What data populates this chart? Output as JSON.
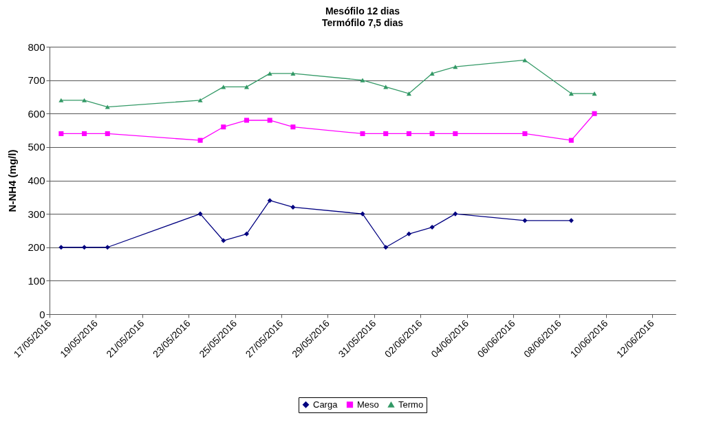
{
  "chart_data": {
    "type": "line",
    "title": "Mesófilo 12 dias",
    "subtitle": "Termófilo 7,5 dias",
    "ylabel": "N-NH4 (mg/l)",
    "x": [
      "2016-05-17T12:00",
      "2016-05-18T12:00",
      "2016-05-19T12:00",
      "2016-05-23T12:00",
      "2016-05-24T12:00",
      "2016-05-25T12:00",
      "2016-05-26T12:00",
      "2016-05-27T12:00",
      "2016-05-30T12:00",
      "2016-05-31T12:00",
      "2016-06-01T12:00",
      "2016-06-02T12:00",
      "2016-06-03T12:00",
      "2016-06-06T12:00",
      "2016-06-08T12:00",
      "2016-06-09T12:00"
    ],
    "series": [
      {
        "name": "Carga",
        "color": "#000080",
        "marker": "diamond",
        "values": [
          200,
          200,
          200,
          300,
          220,
          240,
          340,
          320,
          300,
          200,
          240,
          260,
          300,
          280,
          280,
          null
        ]
      },
      {
        "name": "Meso",
        "color": "#ff00ff",
        "marker": "square",
        "values": [
          540,
          540,
          540,
          520,
          560,
          580,
          580,
          560,
          540,
          540,
          540,
          540,
          540,
          540,
          520,
          600
        ]
      },
      {
        "name": "Termo",
        "color": "#339966",
        "marker": "triangle",
        "values": [
          640,
          640,
          620,
          640,
          680,
          680,
          720,
          720,
          700,
          680,
          660,
          720,
          740,
          760,
          660,
          660
        ]
      }
    ],
    "xlim": [
      "2016-05-17",
      "2016-06-13"
    ],
    "xticks": [
      {
        "value": "2016-05-17",
        "label": "17/05/2016"
      },
      {
        "value": "2016-05-19",
        "label": "19/05/2016"
      },
      {
        "value": "2016-05-21",
        "label": "21/05/2016"
      },
      {
        "value": "2016-05-23",
        "label": "23/05/2016"
      },
      {
        "value": "2016-05-25",
        "label": "25/05/2016"
      },
      {
        "value": "2016-05-27",
        "label": "27/05/2016"
      },
      {
        "value": "2016-05-29",
        "label": "29/05/2016"
      },
      {
        "value": "2016-05-31",
        "label": "31/05/2016"
      },
      {
        "value": "2016-06-02",
        "label": "02/06/2016"
      },
      {
        "value": "2016-06-04",
        "label": "04/06/2016"
      },
      {
        "value": "2016-06-06",
        "label": "06/06/2016"
      },
      {
        "value": "2016-06-08",
        "label": "08/06/2016"
      },
      {
        "value": "2016-06-10",
        "label": "10/06/2016"
      },
      {
        "value": "2016-06-12",
        "label": "12/06/2016"
      }
    ],
    "ylim": [
      0,
      800
    ],
    "yticks": [
      0,
      100,
      200,
      300,
      400,
      500,
      600,
      700,
      800
    ],
    "grid": "y",
    "legend": "bottom"
  }
}
